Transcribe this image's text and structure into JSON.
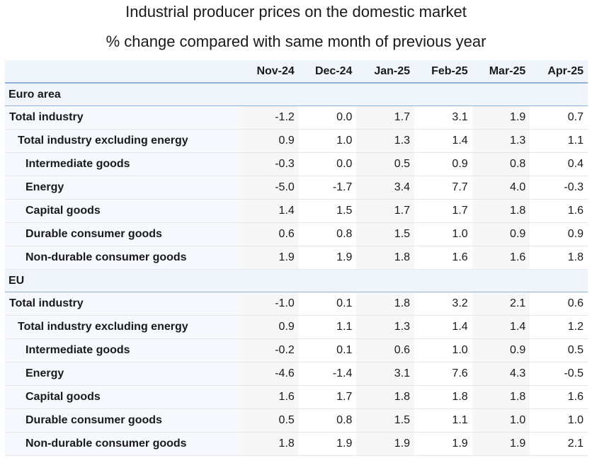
{
  "chart_data": {
    "type": "table",
    "title": "Industrial producer prices on the domestic market",
    "subtitle": "% change compared with same month of previous year",
    "columns": [
      "Nov-24",
      "Dec-24",
      "Jan-25",
      "Feb-25",
      "Mar-25",
      "Apr-25"
    ],
    "groups": [
      {
        "name": "Euro area",
        "rows": [
          {
            "label": "Total industry",
            "level": 0,
            "values": [
              "-1.2",
              "0.0",
              "1.7",
              "3.1",
              "1.9",
              "0.7"
            ]
          },
          {
            "label": "Total industry excluding energy",
            "level": 1,
            "values": [
              "0.9",
              "1.0",
              "1.3",
              "1.4",
              "1.3",
              "1.1"
            ]
          },
          {
            "label": "Intermediate goods",
            "level": 2,
            "values": [
              "-0.3",
              "0.0",
              "0.5",
              "0.9",
              "0.8",
              "0.4"
            ]
          },
          {
            "label": "Energy",
            "level": 2,
            "values": [
              "-5.0",
              "-1.7",
              "3.4",
              "7.7",
              "4.0",
              "-0.3"
            ]
          },
          {
            "label": "Capital goods",
            "level": 2,
            "values": [
              "1.4",
              "1.5",
              "1.7",
              "1.7",
              "1.8",
              "1.6"
            ]
          },
          {
            "label": "Durable consumer goods",
            "level": 2,
            "values": [
              "0.6",
              "0.8",
              "1.5",
              "1.0",
              "0.9",
              "0.9"
            ]
          },
          {
            "label": "Non-durable consumer goods",
            "level": 2,
            "values": [
              "1.9",
              "1.9",
              "1.8",
              "1.6",
              "1.6",
              "1.8"
            ]
          }
        ]
      },
      {
        "name": "EU",
        "rows": [
          {
            "label": "Total industry",
            "level": 0,
            "values": [
              "-1.0",
              "0.1",
              "1.8",
              "3.2",
              "2.1",
              "0.6"
            ]
          },
          {
            "label": "Total industry excluding energy",
            "level": 1,
            "values": [
              "0.9",
              "1.1",
              "1.3",
              "1.4",
              "1.4",
              "1.2"
            ]
          },
          {
            "label": "Intermediate goods",
            "level": 2,
            "values": [
              "-0.2",
              "0.1",
              "0.6",
              "1.0",
              "0.9",
              "0.5"
            ]
          },
          {
            "label": "Energy",
            "level": 2,
            "values": [
              "-4.6",
              "-1.4",
              "3.1",
              "7.6",
              "4.3",
              "-0.5"
            ]
          },
          {
            "label": "Capital goods",
            "level": 2,
            "values": [
              "1.6",
              "1.7",
              "1.8",
              "1.8",
              "1.8",
              "1.6"
            ]
          },
          {
            "label": "Durable consumer goods",
            "level": 2,
            "values": [
              "0.5",
              "0.8",
              "1.5",
              "1.1",
              "1.0",
              "1.0"
            ]
          },
          {
            "label": "Non-durable consumer goods",
            "level": 2,
            "values": [
              "1.8",
              "1.9",
              "1.9",
              "1.9",
              "1.9",
              "2.1"
            ]
          }
        ]
      }
    ]
  }
}
